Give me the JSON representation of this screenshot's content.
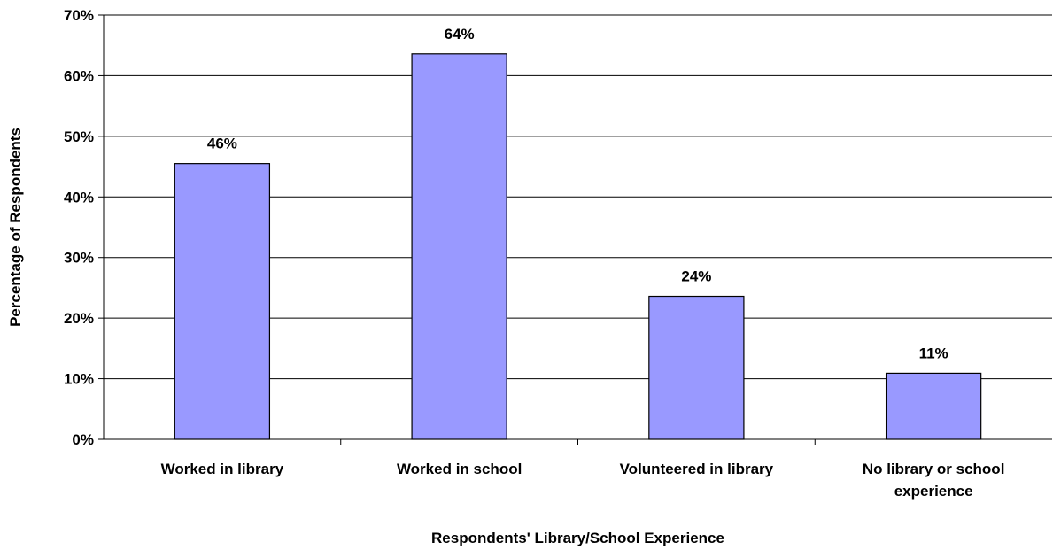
{
  "chart_data": {
    "type": "bar",
    "title": "",
    "xlabel": "Respondents' Library/School Experience",
    "ylabel": "Percentage of Respondents",
    "categories": [
      [
        "Worked in library"
      ],
      [
        "Worked in school"
      ],
      [
        "Volunteered in library"
      ],
      [
        "No library or school",
        "experience"
      ]
    ],
    "values": [
      45.5,
      63.6,
      23.6,
      10.9
    ],
    "data_labels": [
      "46%",
      "64%",
      "24%",
      "11%"
    ],
    "ylim": [
      0,
      70
    ],
    "y_ticks": [
      0,
      10,
      20,
      30,
      40,
      50,
      60,
      70
    ],
    "y_tick_labels": [
      "0%",
      "10%",
      "20%",
      "30%",
      "40%",
      "50%",
      "60%",
      "70%"
    ],
    "grid": true,
    "legend": "none",
    "bar_color": "#9999ff",
    "bar_border_color": "#000000",
    "grid_color": "#000000"
  }
}
